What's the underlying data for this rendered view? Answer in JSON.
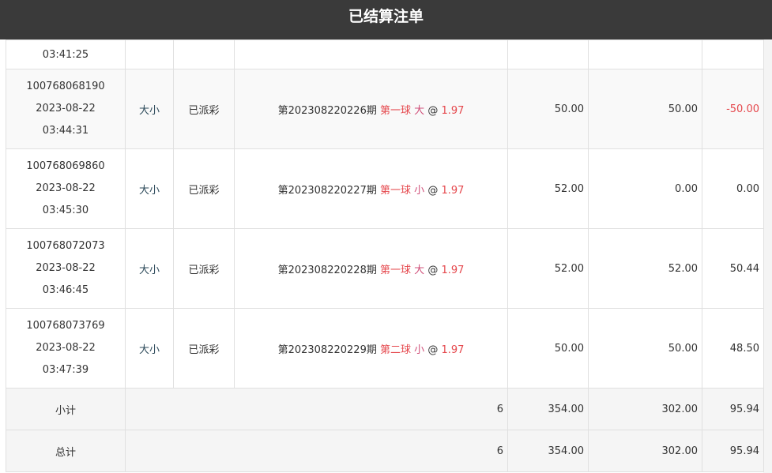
{
  "header": {
    "title": "已结算注单"
  },
  "partial_row": {
    "time": "03:41:25"
  },
  "rows": [
    {
      "id": "100768068190",
      "date": "2023-08-22",
      "time": "03:44:31",
      "category": "大小",
      "status": "已派彩",
      "period": "第202308220226期",
      "play": "第一球",
      "selection": "大",
      "at": "@",
      "odds": "1.97",
      "bet": "50.00",
      "valid": "50.00",
      "result": "-50.00",
      "negative": true
    },
    {
      "id": "100768069860",
      "date": "2023-08-22",
      "time": "03:45:30",
      "category": "大小",
      "status": "已派彩",
      "period": "第202308220227期",
      "play": "第一球",
      "selection": "小",
      "at": "@",
      "odds": "1.97",
      "bet": "52.00",
      "valid": "0.00",
      "result": "0.00",
      "negative": false
    },
    {
      "id": "100768072073",
      "date": "2023-08-22",
      "time": "03:46:45",
      "category": "大小",
      "status": "已派彩",
      "period": "第202308220228期",
      "play": "第一球",
      "selection": "大",
      "at": "@",
      "odds": "1.97",
      "bet": "52.00",
      "valid": "52.00",
      "result": "50.44",
      "negative": false
    },
    {
      "id": "100768073769",
      "date": "2023-08-22",
      "time": "03:47:39",
      "category": "大小",
      "status": "已派彩",
      "period": "第202308220229期",
      "play": "第二球",
      "selection": "小",
      "at": "@",
      "odds": "1.97",
      "bet": "50.00",
      "valid": "50.00",
      "result": "48.50",
      "negative": false
    }
  ],
  "subtotal": {
    "label": "小计",
    "count": "6",
    "bet": "354.00",
    "valid": "302.00",
    "result": "95.94"
  },
  "total": {
    "label": "总计",
    "count": "6",
    "bet": "354.00",
    "valid": "302.00",
    "result": "95.94"
  }
}
